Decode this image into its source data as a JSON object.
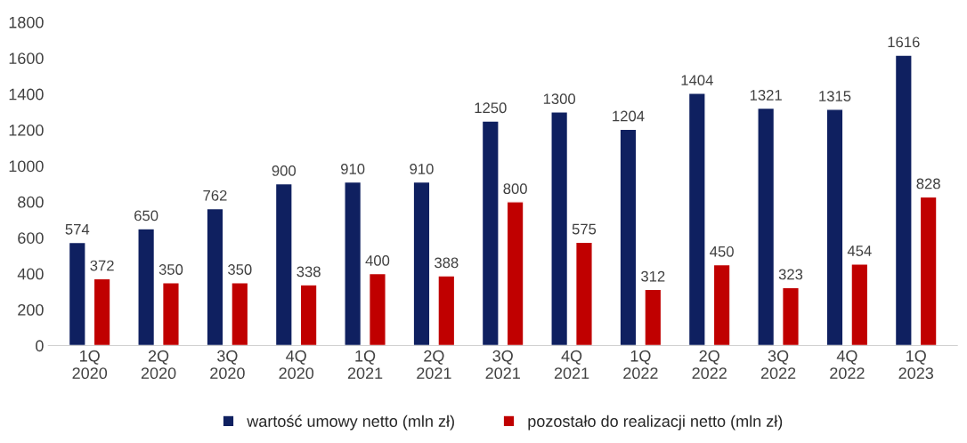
{
  "chart_data": {
    "type": "bar",
    "categories": [
      "1Q\n2020",
      "2Q\n2020",
      "3Q\n2020",
      "4Q\n2020",
      "1Q\n2021",
      "2Q\n2021",
      "3Q\n2021",
      "4Q\n2021",
      "1Q\n2022",
      "2Q\n2022",
      "3Q\n2022",
      "4Q\n2022",
      "1Q\n2023"
    ],
    "series": [
      {
        "name": "wartość umowy netto (mln zł)",
        "color": "#0f2060",
        "values": [
          574,
          650,
          762,
          900,
          910,
          910,
          1250,
          1300,
          1204,
          1404,
          1321,
          1315,
          1616
        ]
      },
      {
        "name": "pozostało do realizacji netto (mln zł)",
        "color": "#c00000",
        "values": [
          372,
          350,
          350,
          338,
          400,
          388,
          800,
          575,
          312,
          450,
          323,
          454,
          828
        ]
      }
    ],
    "ylim": [
      0,
      1800
    ],
    "yticks": [
      0,
      200,
      400,
      600,
      800,
      1000,
      1200,
      1400,
      1600,
      1800
    ],
    "data_labels": true,
    "grid": false,
    "legend": "bottom"
  }
}
